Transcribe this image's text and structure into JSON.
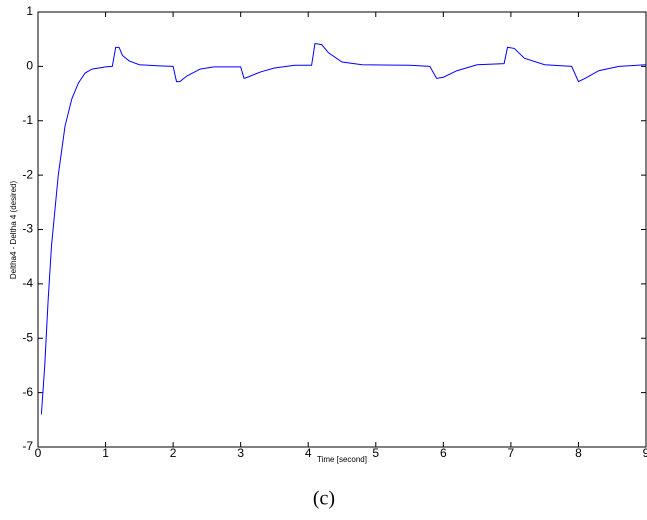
{
  "chart_data": {
    "type": "line",
    "xlabel": "Time [second]",
    "ylabel": "Deltha4 - Deltha 4 (desired)",
    "x": [
      0.05,
      0.1,
      0.15,
      0.2,
      0.3,
      0.4,
      0.5,
      0.6,
      0.7,
      0.8,
      1.0,
      1.1,
      1.15,
      1.2,
      1.25,
      1.35,
      1.5,
      1.8,
      2.0,
      2.05,
      2.1,
      2.2,
      2.4,
      2.6,
      3.0,
      3.05,
      3.1,
      3.3,
      3.5,
      3.8,
      4.05,
      4.1,
      4.2,
      4.3,
      4.5,
      4.8,
      5.5,
      5.8,
      5.9,
      6.0,
      6.2,
      6.5,
      6.9,
      6.95,
      7.05,
      7.2,
      7.5,
      7.9,
      8.0,
      8.1,
      8.3,
      8.6,
      9.0
    ],
    "series": [
      {
        "color": "#0000ff",
        "values": [
          -6.4,
          -5.5,
          -4.3,
          -3.3,
          -2.0,
          -1.1,
          -0.6,
          -0.3,
          -0.12,
          -0.05,
          -0.01,
          0.0,
          0.35,
          0.35,
          0.2,
          0.1,
          0.03,
          0.01,
          0.0,
          -0.28,
          -0.28,
          -0.18,
          -0.05,
          -0.01,
          -0.01,
          -0.22,
          -0.2,
          -0.1,
          -0.03,
          0.02,
          0.02,
          0.42,
          0.4,
          0.25,
          0.08,
          0.03,
          0.02,
          0.0,
          -0.22,
          -0.2,
          -0.08,
          0.03,
          0.05,
          0.35,
          0.33,
          0.15,
          0.03,
          0.0,
          -0.28,
          -0.22,
          -0.08,
          0.0,
          0.03
        ]
      }
    ],
    "xlim": [
      0,
      9
    ],
    "ylim": [
      -7,
      1
    ],
    "xticks": [
      0,
      1,
      2,
      3,
      4,
      5,
      6,
      7,
      8,
      9
    ],
    "yticks": [
      -7,
      -6,
      -5,
      -4,
      -3,
      -2,
      -1,
      0,
      1
    ],
    "grid": false
  },
  "caption": "(c)"
}
